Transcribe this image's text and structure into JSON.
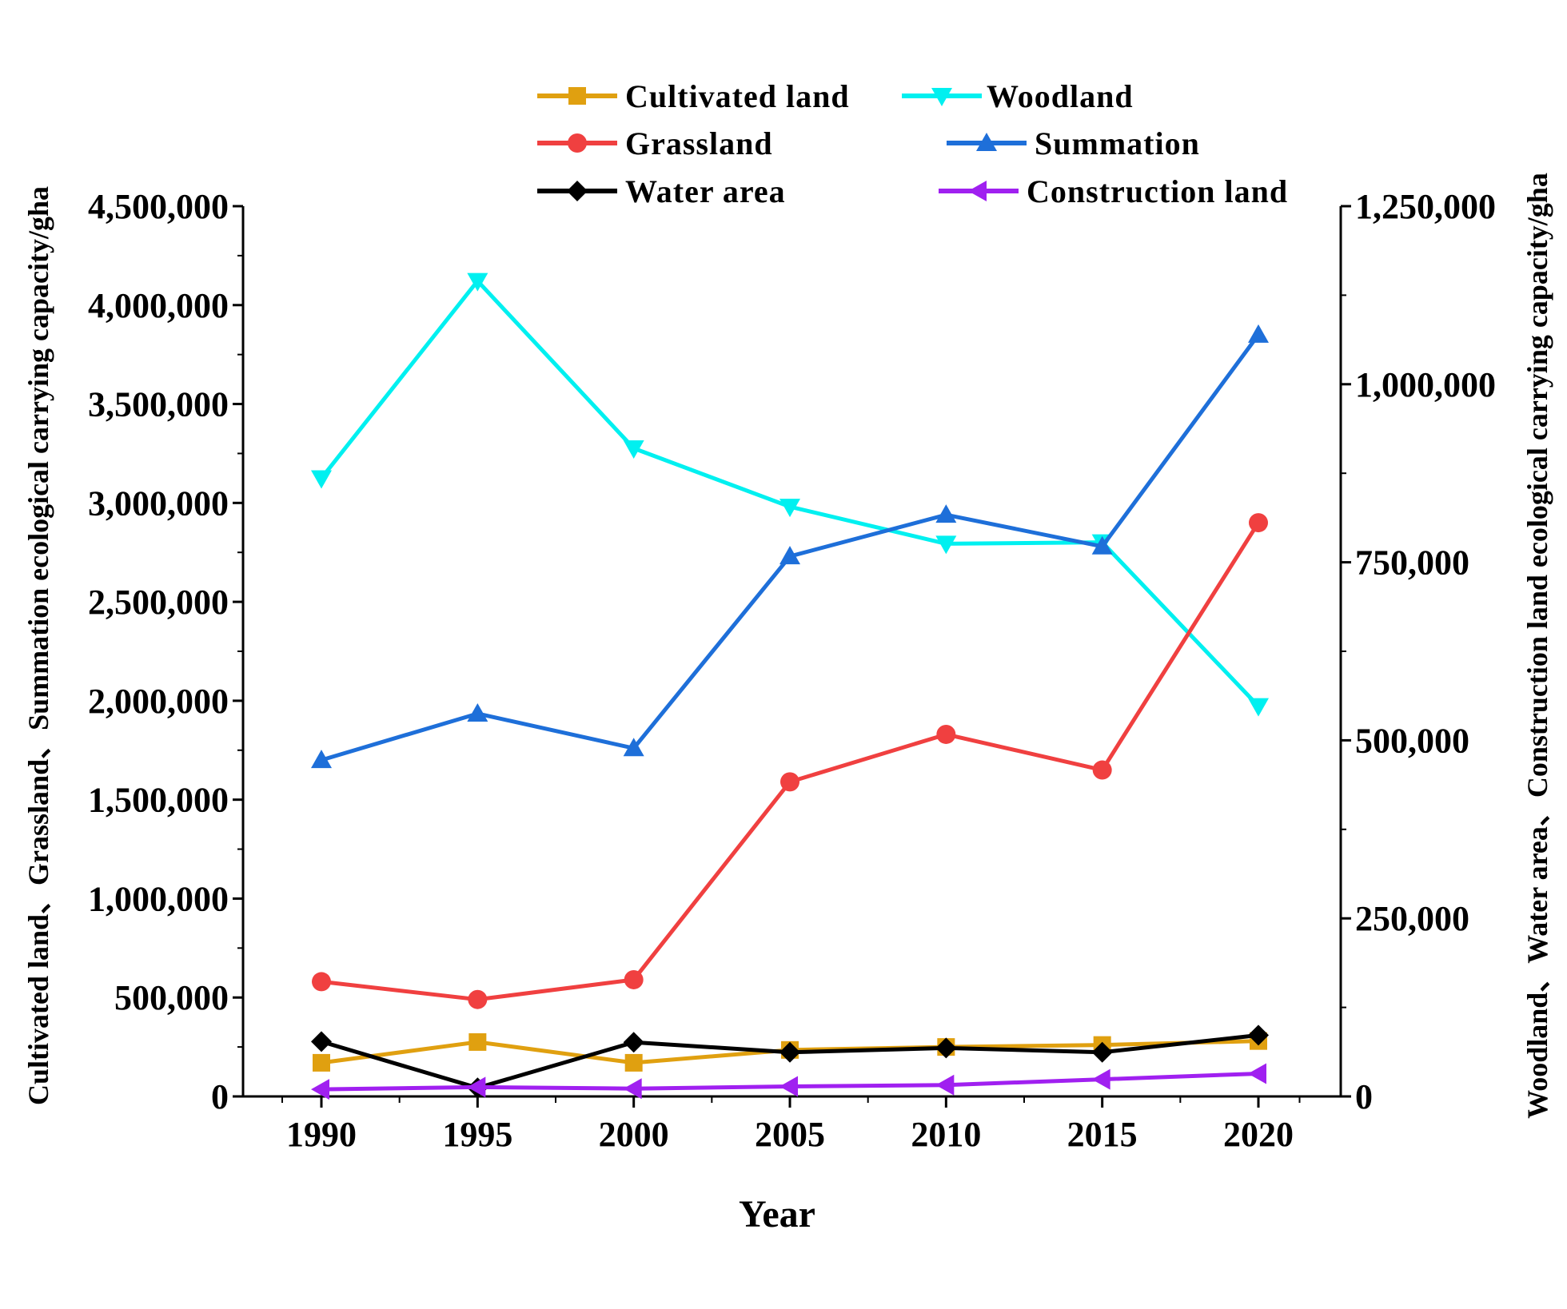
{
  "chart_data": {
    "type": "line",
    "x": [
      1990,
      1995,
      2000,
      2005,
      2010,
      2015,
      2020
    ],
    "categories": [
      "1990",
      "1995",
      "2000",
      "2005",
      "2010",
      "2015",
      "2020"
    ],
    "xlabel": "Year",
    "ylabel_left": "Cultivated land、Grassland、Summation ecological carrying capacity/gha",
    "ylabel_right": "Woodland、Water area、Construction land ecological carrying capacity/gha",
    "ylim_left": [
      0,
      4500000
    ],
    "ylim_right": [
      0,
      1250000
    ],
    "yticks_left": [
      0,
      500000,
      1000000,
      1500000,
      2000000,
      2500000,
      3000000,
      3500000,
      4000000,
      4500000
    ],
    "yticks_left_labels": [
      "0",
      "500,000",
      "1,000,000",
      "1,500,000",
      "2,000,000",
      "2,500,000",
      "3,000,000",
      "3,500,000",
      "4,000,000",
      "4,500,000"
    ],
    "yticks_right": [
      0,
      250000,
      500000,
      750000,
      1000000,
      1250000
    ],
    "yticks_right_labels": [
      "0",
      "250,000",
      "500,000",
      "750,000",
      "1,000,000",
      "1,250,000"
    ],
    "legend_position": "top-center",
    "series": [
      {
        "name": "Cultivated land",
        "axis": "left",
        "color": "#E0A010",
        "marker": "square",
        "values": [
          170000,
          275000,
          170000,
          235000,
          250000,
          260000,
          280000
        ]
      },
      {
        "name": "Woodland",
        "axis": "right",
        "color": "#00F0F0",
        "marker": "triangle-down",
        "values": [
          868000,
          1145000,
          910000,
          828000,
          776000,
          778000,
          548000
        ]
      },
      {
        "name": "Grassland",
        "axis": "left",
        "color": "#F04040",
        "marker": "circle",
        "values": [
          580000,
          490000,
          590000,
          1590000,
          1830000,
          1650000,
          2900000
        ]
      },
      {
        "name": "Summation",
        "axis": "left",
        "color": "#1E6FD9",
        "marker": "triangle-up",
        "values": [
          1700000,
          1935000,
          1760000,
          2730000,
          2940000,
          2780000,
          3850000
        ]
      },
      {
        "name": "Water area",
        "axis": "right",
        "color": "#000000",
        "marker": "diamond",
        "values": [
          77000,
          12000,
          76000,
          62000,
          68000,
          62000,
          86000
        ]
      },
      {
        "name": "Construction land",
        "axis": "right",
        "color": "#A020F0",
        "marker": "triangle-left",
        "values": [
          10000,
          13000,
          11000,
          14000,
          16000,
          24000,
          32000
        ]
      }
    ]
  }
}
